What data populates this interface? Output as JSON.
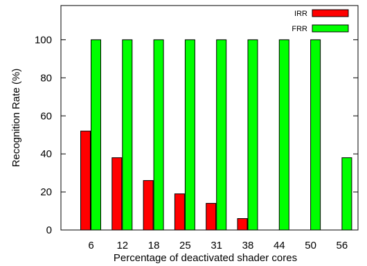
{
  "chart_data": {
    "type": "bar",
    "categories": [
      "6",
      "12",
      "18",
      "25",
      "31",
      "38",
      "44",
      "50",
      "56"
    ],
    "series": [
      {
        "name": "IRR",
        "values": [
          52,
          38,
          26,
          19,
          14,
          6,
          0,
          0,
          0
        ],
        "color": "#ff0000"
      },
      {
        "name": "FRR",
        "values": [
          100,
          100,
          100,
          100,
          100,
          100,
          100,
          100,
          38
        ],
        "color": "#00ff00"
      }
    ],
    "xlabel": "Percentage of deactivated shader cores",
    "ylabel": "Recognition Rate (%)",
    "ylim": [
      0,
      118
    ],
    "yticks": [
      0,
      20,
      40,
      60,
      80,
      100
    ],
    "grid": false,
    "legend_position": "top-right"
  }
}
